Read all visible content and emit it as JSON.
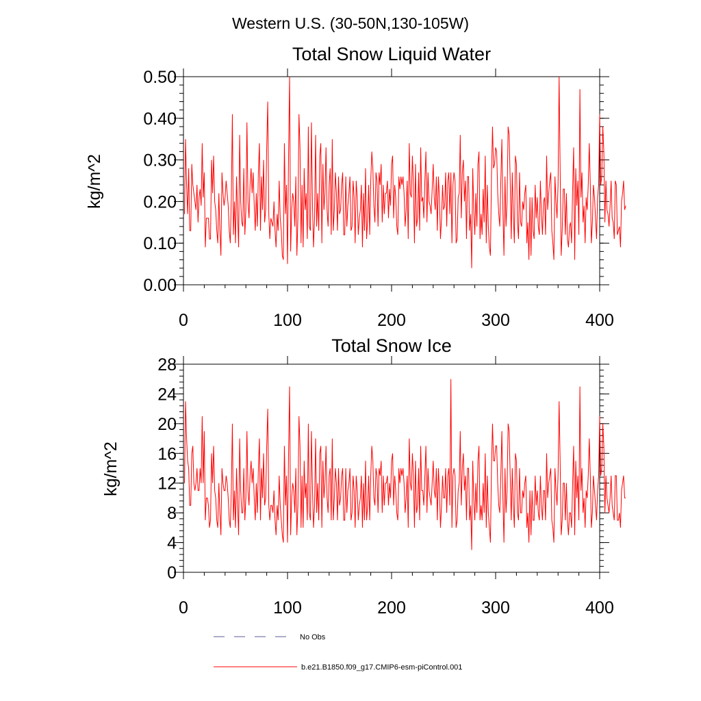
{
  "figure": {
    "suptitle": "Western U.S. (30-50N,130-105W)"
  },
  "chart_data": [
    {
      "type": "line",
      "title": "Total Snow Liquid Water",
      "xlabel": "",
      "ylabel": "kg/m^2",
      "xlim": [
        0,
        400
      ],
      "ylim": [
        0,
        0.5
      ],
      "xticks": [
        0,
        100,
        200,
        300,
        400
      ],
      "xtick_labels": [
        "0",
        "100",
        "200",
        "300",
        "400"
      ],
      "yticks": [
        0,
        0.1,
        0.2,
        0.3,
        0.4,
        0.5
      ],
      "ytick_labels": [
        "0.00",
        "0.10",
        "0.20",
        "0.30",
        "0.40",
        "0.50"
      ],
      "series": [
        {
          "name": "b.e21.B1850.f09_g17.CMIP6-esm-piControl.001",
          "color": "#ff0000",
          "x_start": 1,
          "x_step": 1,
          "y": [
            0.17,
            0.35,
            0.24,
            0.17,
            0.28,
            0.13,
            0.13,
            0.29,
            0.24,
            0.22,
            0.2,
            0.18,
            0.24,
            0.15,
            0.21,
            0.23,
            0.19,
            0.34,
            0.21,
            0.27,
            0.09,
            0.16,
            0.16,
            0.16,
            0.11,
            0.11,
            0.3,
            0.22,
            0.31,
            0.2,
            0.18,
            0.13,
            0.1,
            0.22,
            0.13,
            0.07,
            0.27,
            0.22,
            0.19,
            0.21,
            0.25,
            0.22,
            0.19,
            0.13,
            0.1,
            0.21,
            0.41,
            0.12,
            0.2,
            0.1,
            0.26,
            0.17,
            0.09,
            0.36,
            0.2,
            0.15,
            0.14,
            0.28,
            0.12,
            0.18,
            0.39,
            0.2,
            0.16,
            0.24,
            0.28,
            0.22,
            0.27,
            0.19,
            0.13,
            0.22,
            0.14,
            0.27,
            0.34,
            0.13,
            0.26,
            0.18,
            0.3,
            0.15,
            0.18,
            0.33,
            0.44,
            0.17,
            0.11,
            0.16,
            0.15,
            0.14,
            0.2,
            0.13,
            0.09,
            0.17,
            0.13,
            0.25,
            0.16,
            0.13,
            0.07,
            0.06,
            0.34,
            0.17,
            0.24,
            0.05,
            0.31,
            0.5,
            0.08,
            0.18,
            0.22,
            0.2,
            0.14,
            0.26,
            0.07,
            0.16,
            0.41,
            0.33,
            0.1,
            0.24,
            0.09,
            0.28,
            0.18,
            0.22,
            0.11,
            0.38,
            0.14,
            0.13,
            0.39,
            0.19,
            0.09,
            0.16,
            0.36,
            0.14,
            0.22,
            0.13,
            0.31,
            0.34,
            0.1,
            0.29,
            0.18,
            0.22,
            0.33,
            0.18,
            0.14,
            0.24,
            0.28,
            0.12,
            0.35,
            0.13,
            0.18,
            0.27,
            0.22,
            0.13,
            0.26,
            0.17,
            0.18,
            0.24,
            0.27,
            0.12,
            0.12,
            0.26,
            0.14,
            0.19,
            0.22,
            0.26,
            0.13,
            0.14,
            0.25,
            0.21,
            0.1,
            0.25,
            0.21,
            0.12,
            0.16,
            0.18,
            0.24,
            0.09,
            0.22,
            0.13,
            0.28,
            0.11,
            0.16,
            0.24,
            0.12,
            0.25,
            0.32,
            0.28,
            0.19,
            0.15,
            0.27,
            0.25,
            0.14,
            0.27,
            0.24,
            0.29,
            0.15,
            0.24,
            0.17,
            0.22,
            0.22,
            0.25,
            0.16,
            0.23,
            0.19,
            0.29,
            0.31,
            0.16,
            0.24,
            0.21,
            0.14,
            0.12,
            0.26,
            0.23,
            0.26,
            0.24,
            0.26,
            0.22,
            0.14,
            0.18,
            0.25,
            0.11,
            0.34,
            0.22,
            0.21,
            0.31,
            0.24,
            0.1,
            0.29,
            0.14,
            0.16,
            0.27,
            0.13,
            0.33,
            0.2,
            0.21,
            0.16,
            0.25,
            0.32,
            0.15,
            0.27,
            0.2,
            0.19,
            0.17,
            0.23,
            0.29,
            0.21,
            0.18,
            0.26,
            0.13,
            0.26,
            0.21,
            0.11,
            0.16,
            0.24,
            0.18,
            0.19,
            0.27,
            0.14,
            0.25,
            0.27,
            0.17,
            0.27,
            0.1,
            0.24,
            0.27,
            0.25,
            0.1,
            0.11,
            0.21,
            0.22,
            0.36,
            0.16,
            0.27,
            0.3,
            0.2,
            0.25,
            0.11,
            0.26,
            0.26,
            0.13,
            0.17,
            0.04,
            0.28,
            0.18,
            0.12,
            0.22,
            0.14,
            0.29,
            0.32,
            0.11,
            0.17,
            0.12,
            0.23,
            0.15,
            0.31,
            0.1,
            0.24,
            0.14,
            0.09,
            0.07,
            0.26,
            0.38,
            0.28,
            0.29,
            0.33,
            0.32,
            0.22,
            0.17,
            0.14,
            0.25,
            0.35,
            0.18,
            0.07,
            0.26,
            0.14,
            0.2,
            0.38,
            0.36,
            0.25,
            0.11,
            0.27,
            0.17,
            0.1,
            0.31,
            0.29,
            0.15,
            0.11,
            0.27,
            0.15,
            0.14,
            0.2,
            0.18,
            0.22,
            0.24,
            0.1,
            0.15,
            0.06,
            0.21,
            0.07,
            0.21,
            0.13,
            0.11,
            0.24,
            0.16,
            0.21,
            0.14,
            0.12,
            0.25,
            0.17,
            0.12,
            0.2,
            0.21,
            0.12,
            0.31,
            0.18,
            0.22,
            0.25,
            0.27,
            0.13,
            0.1,
            0.06,
            0.26,
            0.2,
            0.16,
            0.24,
            0.5,
            0.28,
            0.07,
            0.13,
            0.23,
            0.23,
            0.12,
            0.22,
            0.11,
            0.09,
            0.14,
            0.15,
            0.1,
            0.23,
            0.33,
            0.06,
            0.28,
            0.19,
            0.25,
            0.12,
            0.47,
            0.21,
            0.27,
            0.15,
            0.19,
            0.1,
            0.21,
            0.18,
            0.24,
            0.34,
            0.24,
            0.1,
            0.15,
            0.24,
            0.21,
            0.16,
            0.11,
            0.21,
            0.24,
            0.41,
            0.24,
            0.26,
            0.38,
            0.32,
            0.15,
            0.25,
            0.18,
            0.17,
            0.14,
            0.19,
            0.25,
            0.16,
            0.15,
            0.11,
            0.25,
            0.24,
            0.12,
            0.13,
            0.14,
            0.09,
            0.2,
            0.22,
            0.25,
            0.18,
            0.19
          ]
        }
      ]
    },
    {
      "type": "line",
      "title": "Total Snow Ice",
      "xlabel": "",
      "ylabel": "kg/m^2",
      "xlim": [
        0,
        400
      ],
      "ylim": [
        0,
        28
      ],
      "xticks": [
        0,
        100,
        200,
        300,
        400
      ],
      "xtick_labels": [
        "0",
        "100",
        "200",
        "300",
        "400"
      ],
      "yticks": [
        0,
        4,
        8,
        12,
        16,
        20,
        24,
        28
      ],
      "ytick_labels": [
        "0",
        "4",
        "8",
        "12",
        "16",
        "20",
        "24",
        "28"
      ],
      "series": [
        {
          "name": "b.e21.B1850.f09_g17.CMIP6-esm-piControl.001",
          "color": "#ff0000",
          "x_start": 1,
          "x_step": 1,
          "y": [
            12,
            23,
            18,
            15,
            14,
            9,
            9,
            16,
            17,
            12,
            11,
            12,
            14,
            11,
            11,
            14,
            12,
            21,
            12,
            19,
            7,
            10,
            10,
            9,
            6,
            7,
            16,
            12,
            17,
            11,
            10,
            7,
            6,
            12,
            8,
            5,
            14,
            12,
            11,
            11,
            13,
            12,
            10,
            7,
            6,
            11,
            20,
            7,
            11,
            6,
            14,
            9,
            5,
            18,
            11,
            8,
            8,
            14,
            7,
            10,
            19,
            11,
            9,
            13,
            15,
            12,
            14,
            10,
            7,
            12,
            8,
            14,
            18,
            7,
            14,
            10,
            16,
            9,
            10,
            17,
            22,
            9,
            7,
            9,
            9,
            8,
            11,
            7,
            5,
            9,
            7,
            13,
            9,
            7,
            5,
            4,
            17,
            9,
            13,
            4,
            16,
            25,
            5,
            10,
            12,
            11,
            8,
            14,
            5,
            9,
            21,
            17,
            6,
            13,
            6,
            15,
            10,
            12,
            7,
            20,
            8,
            7,
            19,
            11,
            6,
            9,
            18,
            8,
            12,
            7,
            16,
            17,
            6,
            15,
            10,
            12,
            17,
            10,
            8,
            13,
            14,
            7,
            18,
            7,
            10,
            14,
            12,
            7,
            14,
            9,
            10,
            13,
            14,
            7,
            7,
            14,
            8,
            11,
            12,
            14,
            7,
            8,
            13,
            11,
            6,
            13,
            11,
            7,
            9,
            10,
            13,
            6,
            12,
            7,
            15,
            7,
            9,
            13,
            7,
            13,
            17,
            15,
            10,
            9,
            14,
            13,
            8,
            14,
            13,
            15,
            8,
            13,
            9,
            12,
            12,
            13,
            9,
            12,
            10,
            15,
            16,
            9,
            13,
            11,
            8,
            7,
            14,
            12,
            14,
            13,
            14,
            12,
            8,
            10,
            13,
            6,
            18,
            12,
            11,
            16,
            13,
            6,
            15,
            8,
            9,
            14,
            7,
            17,
            11,
            11,
            9,
            13,
            17,
            8,
            14,
            11,
            10,
            9,
            12,
            15,
            11,
            10,
            14,
            7,
            14,
            11,
            6,
            9,
            13,
            10,
            10,
            14,
            8,
            13,
            14,
            9,
            26,
            6,
            13,
            14,
            13,
            6,
            7,
            11,
            12,
            19,
            9,
            14,
            16,
            11,
            13,
            7,
            14,
            14,
            7,
            9,
            3,
            15,
            10,
            7,
            12,
            8,
            15,
            17,
            7,
            9,
            7,
            12,
            8,
            16,
            6,
            13,
            8,
            6,
            4,
            14,
            20,
            15,
            15,
            17,
            17,
            12,
            9,
            8,
            13,
            19,
            10,
            4,
            14,
            8,
            11,
            20,
            19,
            13,
            7,
            14,
            9,
            6,
            16,
            15,
            8,
            7,
            14,
            8,
            8,
            11,
            10,
            12,
            13,
            6,
            8,
            4,
            11,
            5,
            11,
            7,
            7,
            13,
            9,
            11,
            8,
            7,
            13,
            9,
            7,
            11,
            11,
            7,
            16,
            10,
            12,
            13,
            14,
            7,
            6,
            4,
            14,
            11,
            9,
            13,
            23,
            15,
            5,
            7,
            12,
            12,
            7,
            12,
            7,
            5,
            8,
            8,
            6,
            12,
            17,
            5,
            15,
            10,
            13,
            7,
            25,
            11,
            14,
            8,
            10,
            6,
            11,
            10,
            13,
            18,
            13,
            6,
            8,
            13,
            11,
            9,
            7,
            11,
            13,
            21,
            13,
            14,
            20,
            17,
            8,
            13,
            10,
            9,
            8,
            10,
            13,
            9,
            8,
            7,
            13,
            13,
            7,
            7,
            8,
            6,
            11,
            12,
            13,
            10,
            10
          ]
        }
      ]
    }
  ],
  "legend": {
    "items": [
      {
        "label": "No Obs",
        "style": "dashed",
        "color": "#5a5a9a"
      },
      {
        "label": "b.e21.B1850.f09_g17.CMIP6-esm-piControl.001",
        "style": "solid",
        "color": "#ff0000"
      }
    ]
  }
}
